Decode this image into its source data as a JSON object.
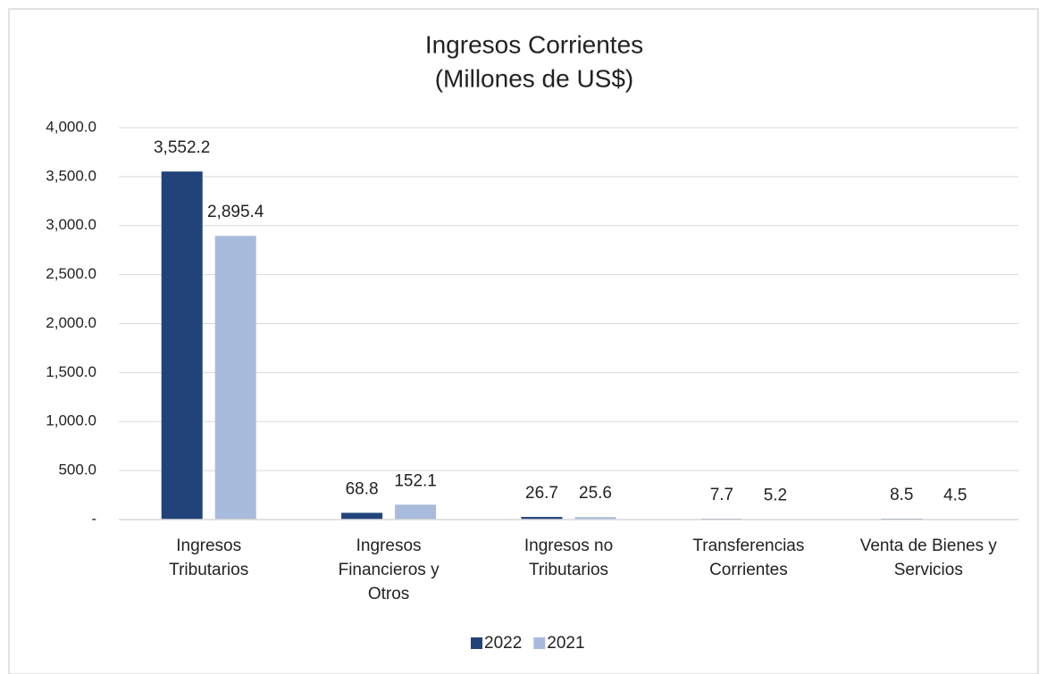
{
  "chart_data": {
    "type": "bar",
    "title": "Ingresos Corrientes",
    "subtitle": "(Millones de US$)",
    "categories": [
      [
        "Ingresos",
        "Tributarios"
      ],
      [
        "Ingresos",
        "Financieros y",
        "Otros"
      ],
      [
        "Ingresos no",
        "Tributarios"
      ],
      [
        "Transferencias",
        "Corrientes"
      ],
      [
        "Venta de Bienes y",
        "Servicios"
      ]
    ],
    "series": [
      {
        "name": "2022",
        "color": "#21437a",
        "values": [
          3552.2,
          68.8,
          26.7,
          7.7,
          8.5
        ],
        "value_labels": [
          "3,552.2",
          "68.8",
          "26.7",
          "7.7",
          "8.5"
        ]
      },
      {
        "name": "2021",
        "color": "#a9bbdc",
        "values": [
          2895.4,
          152.1,
          25.6,
          5.2,
          4.5
        ],
        "value_labels": [
          "2,895.4",
          "152.1",
          "25.6",
          "5.2",
          "4.5"
        ]
      }
    ],
    "ylim": [
      0,
      4000
    ],
    "yticks": [
      {
        "value": 0,
        "label": "-"
      },
      {
        "value": 500,
        "label": "500.0"
      },
      {
        "value": 1000,
        "label": "1,000.0"
      },
      {
        "value": 1500,
        "label": "1,500.0"
      },
      {
        "value": 2000,
        "label": "2,000.0"
      },
      {
        "value": 2500,
        "label": "2,500.0"
      },
      {
        "value": 3000,
        "label": "3,000.0"
      },
      {
        "value": 3500,
        "label": "3,500.0"
      },
      {
        "value": 4000,
        "label": "4,000.0"
      }
    ],
    "grid": true,
    "legend": "bottom"
  }
}
